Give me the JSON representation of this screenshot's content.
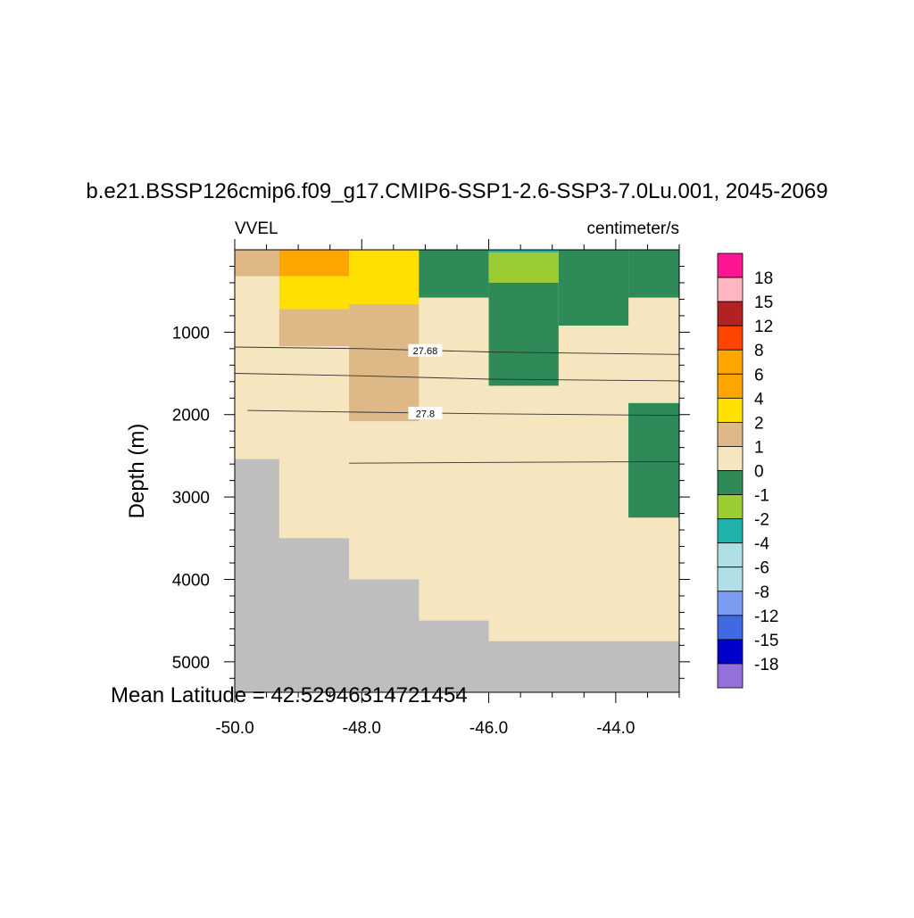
{
  "chart_data": {
    "type": "heatmap",
    "title": "b.e21.BSSP126cmip6.f09_g17.CMIP6-SSP1-2.6-SSP3-7.0Lu.001, 2045-2069",
    "variable_label": "VVEL",
    "units_label": "centimeter/s",
    "ylabel": "Depth (m)",
    "xlabel": "",
    "footer": "Mean Latitude = 42.52946314721454",
    "xlim": [
      -50.0,
      -43.0
    ],
    "ylim": [
      5370,
      0
    ],
    "y_reversed": true,
    "x_ticks": [
      "-50.0",
      "-48.0",
      "-46.0",
      "-44.0"
    ],
    "y_ticks": [
      "1000",
      "2000",
      "3000",
      "4000",
      "5000"
    ],
    "grid": false,
    "legend_position": "right",
    "colorbar": {
      "labels": [
        "18",
        "15",
        "12",
        "8",
        "6",
        "4",
        "2",
        "1",
        "0",
        "-1",
        "-2",
        "-4",
        "-6",
        "-8",
        "-12",
        "-15",
        "-18"
      ],
      "colors": [
        "#ff1493",
        "#ffb6c1",
        "#b22222",
        "#ff4500",
        "#ffa500",
        "#ffa500",
        "#ffe000",
        "#deb887",
        "#f5e6c0",
        "#2e8b57",
        "#9acd32",
        "#20b2aa",
        "#b0e0e6",
        "#b0e0e6",
        "#7b9cf0",
        "#4169e1",
        "#0000cd",
        "#9370db"
      ]
    },
    "background_color": "#f5e6c0",
    "land_color": "#bebebe",
    "cells": [
      {
        "x": [
          -50.0,
          -49.3
        ],
        "y": [
          0,
          320
        ],
        "category": "1 to 2",
        "color": "#deb887"
      },
      {
        "x": [
          -49.3,
          -48.2
        ],
        "y": [
          0,
          320
        ],
        "category": "4 to 6",
        "color": "#ffa500"
      },
      {
        "x": [
          -49.3,
          -48.2
        ],
        "y": [
          320,
          720
        ],
        "category": "2 to 4",
        "color": "#ffe000"
      },
      {
        "x": [
          -48.2,
          -47.1
        ],
        "y": [
          0,
          660
        ],
        "category": "2 to 4",
        "color": "#ffe000"
      },
      {
        "x": [
          -49.3,
          -48.2
        ],
        "y": [
          720,
          1170
        ],
        "category": "1 to 2",
        "color": "#deb887"
      },
      {
        "x": [
          -48.2,
          -47.1
        ],
        "y": [
          660,
          2080
        ],
        "category": "1 to 2",
        "color": "#deb887"
      },
      {
        "x": [
          -47.1,
          -46.0
        ],
        "y": [
          0,
          580
        ],
        "category": "-1 to 0",
        "color": "#2e8b57"
      },
      {
        "x": [
          -46.0,
          -44.9
        ],
        "y": [
          0,
          400
        ],
        "category": "-2 to -1",
        "color": "#9acd32"
      },
      {
        "x": [
          -46.0,
          -44.9
        ],
        "y": [
          400,
          1650
        ],
        "category": "-1 to 0",
        "color": "#2e8b57"
      },
      {
        "x": [
          -44.9,
          -43.8
        ],
        "y": [
          0,
          920
        ],
        "category": "-1 to 0",
        "color": "#2e8b57"
      },
      {
        "x": [
          -43.8,
          -43.0
        ],
        "y": [
          0,
          580
        ],
        "category": "-1 to 0",
        "color": "#2e8b57"
      },
      {
        "x": [
          -43.8,
          -43.0
        ],
        "y": [
          1860,
          3250
        ],
        "category": "-1 to 0",
        "color": "#2e8b57"
      },
      {
        "x": [
          -46.0,
          -44.9
        ],
        "y": [
          0,
          30
        ],
        "category": "-4 to -2",
        "color": "#20b2aa"
      }
    ],
    "land": [
      {
        "x": [
          -50.0,
          -49.3
        ],
        "y_top": 2540
      },
      {
        "x": [
          -49.3,
          -48.2
        ],
        "y_top": 3500
      },
      {
        "x": [
          -48.2,
          -47.1
        ],
        "y_top": 4000
      },
      {
        "x": [
          -47.1,
          -46.0
        ],
        "y_top": 4500
      },
      {
        "x": [
          -46.0,
          -43.0
        ],
        "y_top": 4750
      }
    ],
    "contours": [
      {
        "label": "27.68",
        "label_x": -47.0,
        "points": [
          [
            -50.0,
            1180
          ],
          [
            -48.0,
            1200
          ],
          [
            -46.0,
            1240
          ],
          [
            -43.0,
            1270
          ]
        ]
      },
      {
        "label": "",
        "points": [
          [
            -50.0,
            1500
          ],
          [
            -48.0,
            1530
          ],
          [
            -46.0,
            1570
          ],
          [
            -43.0,
            1590
          ]
        ]
      },
      {
        "label": "27.8",
        "label_x": -47.0,
        "points": [
          [
            -49.8,
            1950
          ],
          [
            -48.0,
            1970
          ],
          [
            -46.0,
            1990
          ],
          [
            -43.0,
            2010
          ]
        ]
      },
      {
        "label": "",
        "points": [
          [
            -48.2,
            2590
          ],
          [
            -46.0,
            2580
          ],
          [
            -43.0,
            2570
          ]
        ]
      }
    ]
  }
}
